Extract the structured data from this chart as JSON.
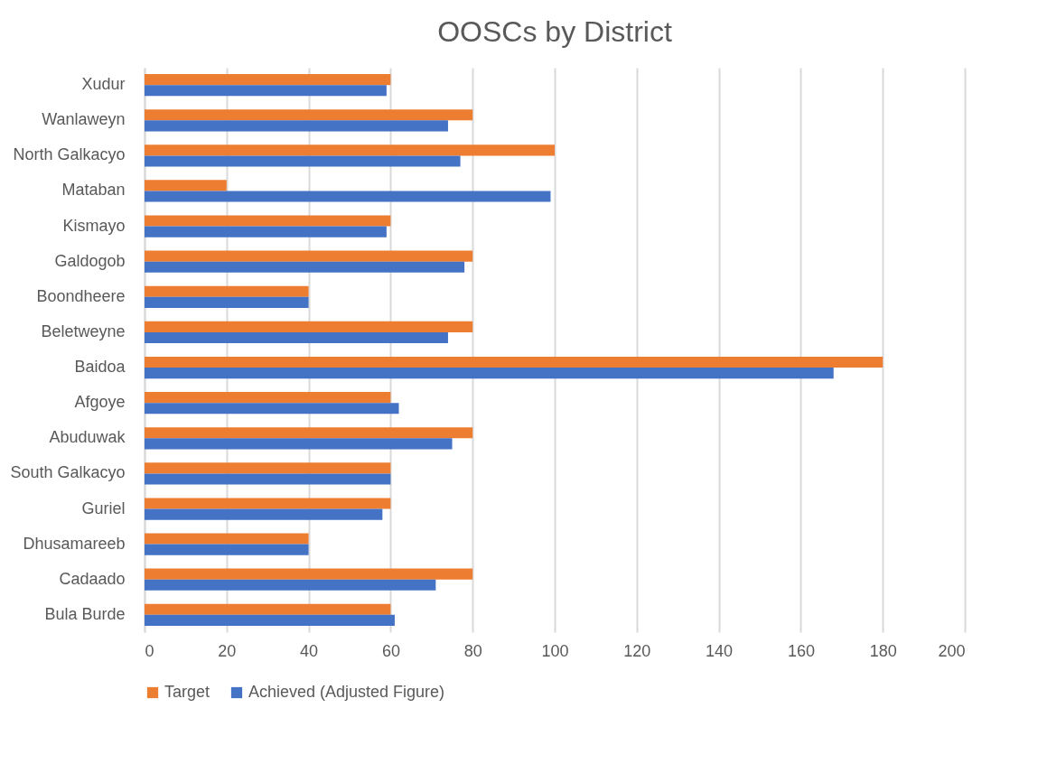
{
  "chart_data": {
    "type": "bar",
    "orientation": "horizontal",
    "title": "OOSCs by District",
    "categories": [
      "Xudur",
      "Wanlaweyn",
      "North Galkacyo",
      "Mataban",
      "Kismayo",
      "Galdogob",
      "Boondheere",
      "Beletweyne",
      "Baidoa",
      "Afgoye",
      "Abuduwak",
      "South Galkacyo",
      "Guriel",
      "Dhusamareeb",
      "Cadaado",
      "Bula Burde"
    ],
    "series": [
      {
        "name": "Target",
        "color": "#ed7d31",
        "values": [
          60,
          80,
          100,
          20,
          60,
          80,
          40,
          80,
          180,
          60,
          80,
          60,
          60,
          40,
          80,
          60
        ]
      },
      {
        "name": "Achieved (Adjusted Figure)",
        "color": "#4472c4",
        "values": [
          59,
          74,
          77,
          99,
          59,
          78,
          40,
          74,
          168,
          62,
          75,
          60,
          58,
          40,
          71,
          61
        ]
      }
    ],
    "xlim": [
      0,
      200
    ],
    "xticks": [
      0,
      20,
      40,
      60,
      80,
      100,
      120,
      140,
      160,
      180,
      200
    ],
    "grid": "x",
    "legend": "bottom"
  }
}
